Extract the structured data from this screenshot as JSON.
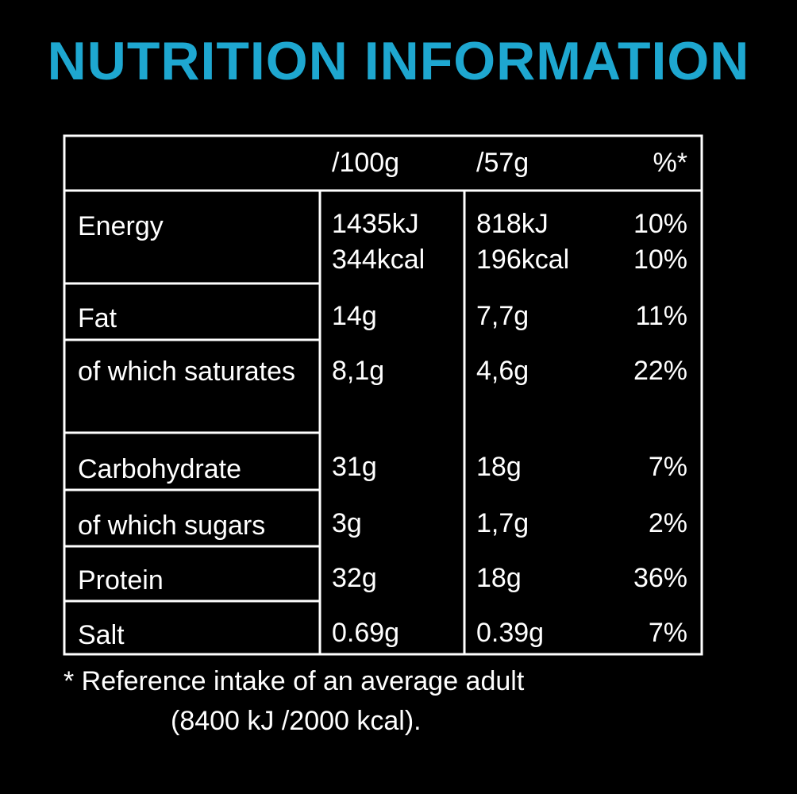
{
  "title": "NUTRITION INFORMATION",
  "table": {
    "header": [
      "/100g",
      "/57g",
      "%*"
    ],
    "rows": [
      {
        "label": "Energy",
        "per_100g": [
          "1435kJ",
          "344kcal"
        ],
        "per_57g": [
          "818kJ",
          "196kcal"
        ],
        "ri": [
          "10%",
          "10%"
        ]
      },
      {
        "label": "Fat",
        "per_100g": [
          "14g"
        ],
        "per_57g": [
          "7,7g"
        ],
        "ri": [
          "11%"
        ]
      },
      {
        "label": "of which saturates",
        "per_100g": [
          "8,1g"
        ],
        "per_57g": [
          "4,6g"
        ],
        "ri": [
          "22%"
        ]
      },
      {
        "label": "Carbohydrate",
        "per_100g": [
          "31g"
        ],
        "per_57g": [
          "18g"
        ],
        "ri": [
          "7%"
        ]
      },
      {
        "label": "of which sugars",
        "per_100g": [
          "3g"
        ],
        "per_57g": [
          "1,7g"
        ],
        "ri": [
          "2%"
        ]
      },
      {
        "label": "Protein",
        "per_100g": [
          "32g"
        ],
        "per_57g": [
          "18g"
        ],
        "ri": [
          "36%"
        ]
      },
      {
        "label": "Salt",
        "per_100g": [
          "0.69g"
        ],
        "per_57g": [
          "0.39g"
        ],
        "ri": [
          "7%"
        ]
      }
    ]
  },
  "footnote": [
    "* Reference intake of an average adult",
    "(8400 kJ /2000 kcal)."
  ]
}
